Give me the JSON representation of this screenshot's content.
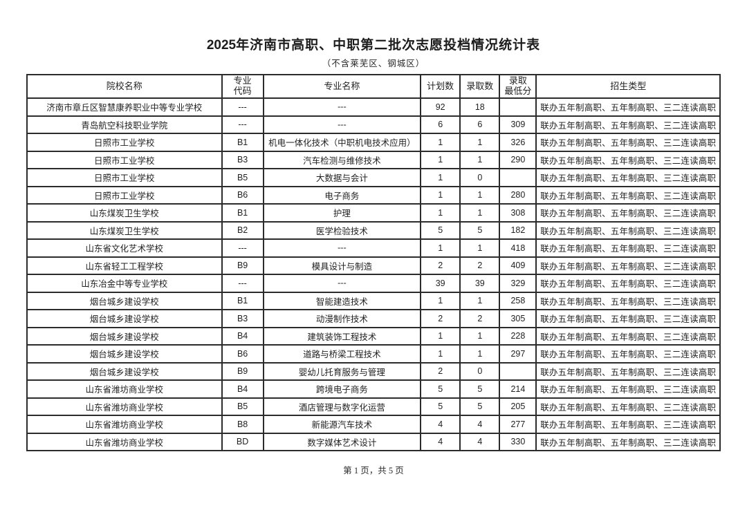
{
  "title": {
    "year": "2025",
    "rest": "年济南市高职、中职第二批次志愿投档情况统计表",
    "subtitle": "（不含莱芜区、钢城区）"
  },
  "table": {
    "headers": {
      "school": "院校名称",
      "code": "专业\n代码",
      "major": "专业名称",
      "plan": "计划数",
      "admitted": "录取数",
      "min_score": "录取\n最低分",
      "type": "招生类型"
    },
    "rows": [
      {
        "school": "济南市章丘区智慧康养职业中等专业学校",
        "code": "---",
        "major": "---",
        "plan": "92",
        "admitted": "18",
        "min_score": "",
        "type": "联办五年制高职、五年制高职、三二连读高职"
      },
      {
        "school": "青岛航空科技职业学院",
        "code": "---",
        "major": "---",
        "plan": "6",
        "admitted": "6",
        "min_score": "309",
        "type": "联办五年制高职、五年制高职、三二连读高职"
      },
      {
        "school": "日照市工业学校",
        "code": "B1",
        "major": "机电一体化技术（中职机电技术应用）",
        "plan": "1",
        "admitted": "1",
        "min_score": "326",
        "type": "联办五年制高职、五年制高职、三二连读高职"
      },
      {
        "school": "日照市工业学校",
        "code": "B3",
        "major": "汽车检测与维修技术",
        "plan": "1",
        "admitted": "1",
        "min_score": "290",
        "type": "联办五年制高职、五年制高职、三二连读高职"
      },
      {
        "school": "日照市工业学校",
        "code": "B5",
        "major": "大数据与会计",
        "plan": "1",
        "admitted": "0",
        "min_score": "",
        "type": "联办五年制高职、五年制高职、三二连读高职"
      },
      {
        "school": "日照市工业学校",
        "code": "B6",
        "major": "电子商务",
        "plan": "1",
        "admitted": "1",
        "min_score": "280",
        "type": "联办五年制高职、五年制高职、三二连读高职"
      },
      {
        "school": "山东煤炭卫生学校",
        "code": "B1",
        "major": "护理",
        "plan": "1",
        "admitted": "1",
        "min_score": "308",
        "type": "联办五年制高职、五年制高职、三二连读高职"
      },
      {
        "school": "山东煤炭卫生学校",
        "code": "B2",
        "major": "医学检验技术",
        "plan": "5",
        "admitted": "5",
        "min_score": "182",
        "type": "联办五年制高职、五年制高职、三二连读高职"
      },
      {
        "school": "山东省文化艺术学校",
        "code": "---",
        "major": "---",
        "plan": "1",
        "admitted": "1",
        "min_score": "418",
        "type": "联办五年制高职、五年制高职、三二连读高职"
      },
      {
        "school": "山东省轻工工程学校",
        "code": "B9",
        "major": "模具设计与制造",
        "plan": "2",
        "admitted": "2",
        "min_score": "409",
        "type": "联办五年制高职、五年制高职、三二连读高职"
      },
      {
        "school": "山东冶金中等专业学校",
        "code": "---",
        "major": "---",
        "plan": "39",
        "admitted": "39",
        "min_score": "329",
        "type": "联办五年制高职、五年制高职、三二连读高职"
      },
      {
        "school": "烟台城乡建设学校",
        "code": "B1",
        "major": "智能建造技术",
        "plan": "1",
        "admitted": "1",
        "min_score": "258",
        "type": "联办五年制高职、五年制高职、三二连读高职"
      },
      {
        "school": "烟台城乡建设学校",
        "code": "B3",
        "major": "动漫制作技术",
        "plan": "2",
        "admitted": "2",
        "min_score": "305",
        "type": "联办五年制高职、五年制高职、三二连读高职"
      },
      {
        "school": "烟台城乡建设学校",
        "code": "B4",
        "major": "建筑装饰工程技术",
        "plan": "1",
        "admitted": "1",
        "min_score": "228",
        "type": "联办五年制高职、五年制高职、三二连读高职"
      },
      {
        "school": "烟台城乡建设学校",
        "code": "B6",
        "major": "道路与桥梁工程技术",
        "plan": "1",
        "admitted": "1",
        "min_score": "297",
        "type": "联办五年制高职、五年制高职、三二连读高职"
      },
      {
        "school": "烟台城乡建设学校",
        "code": "B9",
        "major": "婴幼儿托育服务与管理",
        "plan": "2",
        "admitted": "0",
        "min_score": "",
        "type": "联办五年制高职、五年制高职、三二连读高职"
      },
      {
        "school": "山东省潍坊商业学校",
        "code": "B4",
        "major": "跨境电子商务",
        "plan": "5",
        "admitted": "5",
        "min_score": "214",
        "type": "联办五年制高职、五年制高职、三二连读高职"
      },
      {
        "school": "山东省潍坊商业学校",
        "code": "B5",
        "major": "酒店管理与数字化运营",
        "plan": "5",
        "admitted": "5",
        "min_score": "205",
        "type": "联办五年制高职、五年制高职、三二连读高职"
      },
      {
        "school": "山东省潍坊商业学校",
        "code": "B8",
        "major": "新能源汽车技术",
        "plan": "4",
        "admitted": "4",
        "min_score": "277",
        "type": "联办五年制高职、五年制高职、三二连读高职"
      },
      {
        "school": "山东省潍坊商业学校",
        "code": "BD",
        "major": "数字媒体艺术设计",
        "plan": "4",
        "admitted": "4",
        "min_score": "330",
        "type": "联办五年制高职、五年制高职、三二连读高职"
      }
    ]
  },
  "footer": {
    "page_info": "第 1 页，共 5 页"
  },
  "colors": {
    "text": "#222222",
    "border": "#2b2b2b",
    "background": "#ffffff"
  }
}
